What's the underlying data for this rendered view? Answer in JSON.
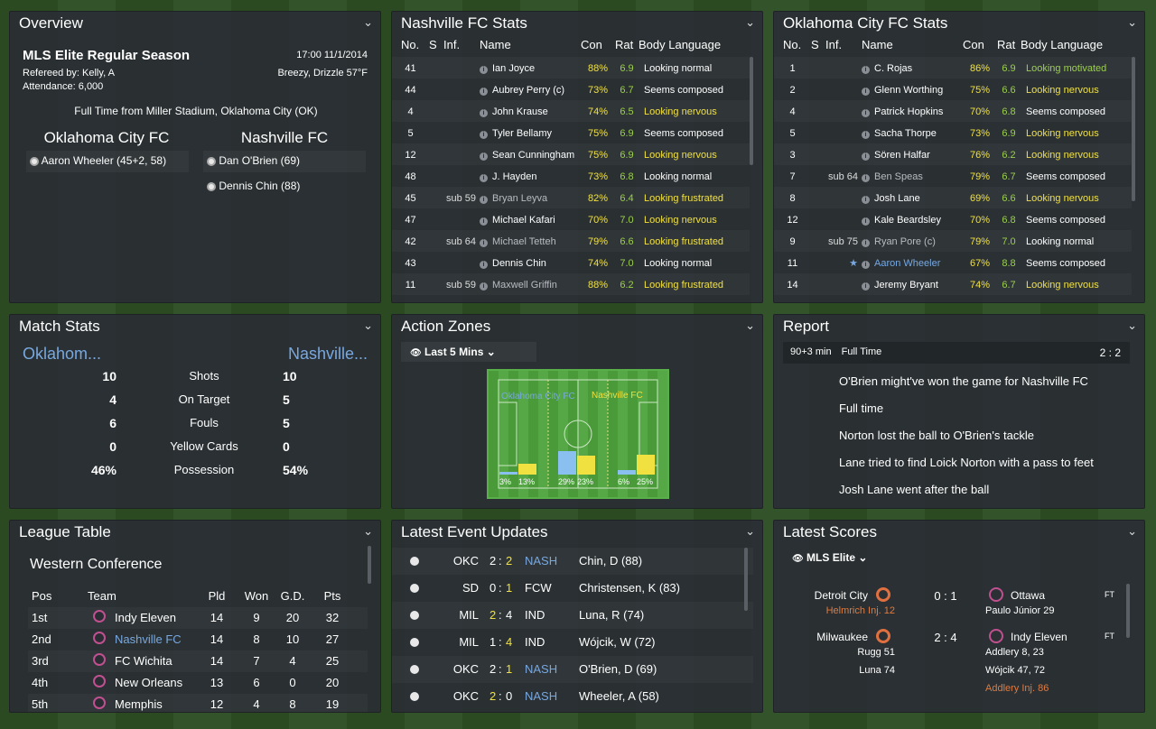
{
  "overview": {
    "title": "Overview",
    "competition": "MLS Elite Regular Season",
    "datetime": "17:00 11/1/2014",
    "referee": "Refereed by: Kelly, A",
    "weather": "Breezy, Drizzle 57°F",
    "attendance": "Attendance: 6,000",
    "result": "Full Time from Miller Stadium, Oklahoma City (OK)",
    "home_team": "Oklahoma City FC",
    "away_team": "Nashville FC",
    "home_scorers": [
      "Aaron Wheeler (45+2, 58)"
    ],
    "away_scorers": [
      "Dan O'Brien (69)",
      "Dennis Chin (88)"
    ]
  },
  "nash_stats": {
    "title": "Nashville FC Stats",
    "headers": [
      "No.",
      "S",
      "Inf.",
      "Name",
      "Con",
      "Rat",
      "Body Language"
    ],
    "rows": [
      {
        "no": "41",
        "sub": "",
        "name": "Ian Joyce",
        "con": "88%",
        "rat": "6.9",
        "bl": "Looking normal",
        "nc": "w",
        "bc": "w"
      },
      {
        "no": "44",
        "sub": "",
        "name": "Aubrey Perry (c)",
        "con": "73%",
        "rat": "6.7",
        "bl": "Seems composed",
        "nc": "w",
        "bc": "w"
      },
      {
        "no": "4",
        "sub": "",
        "name": "John Krause",
        "con": "74%",
        "rat": "6.5",
        "bl": "Looking nervous",
        "nc": "w",
        "bc": "y"
      },
      {
        "no": "5",
        "sub": "",
        "name": "Tyler Bellamy",
        "con": "75%",
        "rat": "6.9",
        "bl": "Seems composed",
        "nc": "w",
        "bc": "w"
      },
      {
        "no": "12",
        "sub": "",
        "name": "Sean Cunningham",
        "con": "75%",
        "rat": "6.9",
        "bl": "Looking nervous",
        "nc": "w",
        "bc": "y"
      },
      {
        "no": "48",
        "sub": "",
        "name": "J. Hayden",
        "con": "73%",
        "rat": "6.8",
        "bl": "Looking normal",
        "nc": "w",
        "bc": "w"
      },
      {
        "no": "45",
        "sub": "sub 59",
        "name": "Bryan Leyva",
        "con": "82%",
        "rat": "6.4",
        "bl": "Looking frustrated",
        "nc": "gr",
        "bc": "y"
      },
      {
        "no": "47",
        "sub": "",
        "name": "Michael Kafari",
        "con": "70%",
        "rat": "7.0",
        "bl": "Looking nervous",
        "nc": "w",
        "bc": "y"
      },
      {
        "no": "42",
        "sub": "sub 64",
        "name": "Michael Tetteh",
        "con": "79%",
        "rat": "6.6",
        "bl": "Looking frustrated",
        "nc": "gr",
        "bc": "y"
      },
      {
        "no": "43",
        "sub": "",
        "name": "Dennis Chin",
        "con": "74%",
        "rat": "7.0",
        "bl": "Looking normal",
        "nc": "w",
        "bc": "w"
      },
      {
        "no": "11",
        "sub": "sub 59",
        "name": "Maxwell Griffin",
        "con": "88%",
        "rat": "6.2",
        "bl": "Looking frustrated",
        "nc": "gr",
        "bc": "y"
      }
    ]
  },
  "okc_stats": {
    "title": "Oklahoma City FC Stats",
    "headers": [
      "No.",
      "S",
      "Inf.",
      "Name",
      "Con",
      "Rat",
      "Body Language"
    ],
    "rows": [
      {
        "no": "1",
        "sub": "",
        "name": "C. Rojas",
        "con": "86%",
        "rat": "6.9",
        "bl": "Looking motivated",
        "nc": "w",
        "bc": "gn"
      },
      {
        "no": "2",
        "sub": "",
        "name": "Glenn Worthing",
        "con": "75%",
        "rat": "6.6",
        "bl": "Looking nervous",
        "nc": "w",
        "bc": "y"
      },
      {
        "no": "4",
        "sub": "",
        "name": "Patrick Hopkins",
        "con": "70%",
        "rat": "6.8",
        "bl": "Seems composed",
        "nc": "w",
        "bc": "w"
      },
      {
        "no": "5",
        "sub": "",
        "name": "Sacha Thorpe",
        "con": "73%",
        "rat": "6.9",
        "bl": "Looking nervous",
        "nc": "w",
        "bc": "y"
      },
      {
        "no": "3",
        "sub": "",
        "name": "Sören Halfar",
        "con": "76%",
        "rat": "6.2",
        "bl": "Looking nervous",
        "nc": "w",
        "bc": "y"
      },
      {
        "no": "7",
        "sub": "sub 64",
        "name": "Ben Speas",
        "con": "79%",
        "rat": "6.7",
        "bl": "Seems composed",
        "nc": "gr",
        "bc": "w"
      },
      {
        "no": "8",
        "sub": "",
        "name": "Josh Lane",
        "con": "69%",
        "rat": "6.6",
        "bl": "Looking nervous",
        "nc": "w",
        "bc": "y"
      },
      {
        "no": "12",
        "sub": "",
        "name": "Kale Beardsley",
        "con": "70%",
        "rat": "6.8",
        "bl": "Seems composed",
        "nc": "w",
        "bc": "w"
      },
      {
        "no": "9",
        "sub": "sub 75",
        "name": "Ryan Pore (c)",
        "con": "79%",
        "rat": "7.0",
        "bl": "Looking normal",
        "nc": "gr",
        "bc": "w"
      },
      {
        "no": "11",
        "sub": "★",
        "name": "Aaron Wheeler",
        "con": "67%",
        "rat": "8.8",
        "bl": "Seems composed",
        "nc": "b",
        "bc": "w"
      },
      {
        "no": "14",
        "sub": "",
        "name": "Jeremy Bryant",
        "con": "74%",
        "rat": "6.7",
        "bl": "Looking nervous",
        "nc": "w",
        "bc": "y"
      }
    ]
  },
  "match_stats": {
    "title": "Match Stats",
    "home": "Oklahom...",
    "away": "Nashville...",
    "rows": [
      {
        "h": "10",
        "label": "Shots",
        "a": "10"
      },
      {
        "h": "4",
        "label": "On Target",
        "a": "5"
      },
      {
        "h": "6",
        "label": "Fouls",
        "a": "5"
      },
      {
        "h": "0",
        "label": "Yellow Cards",
        "a": "0"
      },
      {
        "h": "46%",
        "label": "Possession",
        "a": "54%"
      }
    ]
  },
  "action_zones": {
    "title": "Action Zones",
    "filter": "Last 5 Mins",
    "home_label": "Oklahoma City FC",
    "away_label": "Nashville FC",
    "zones": [
      {
        "home": "3%",
        "away": "13%",
        "home_v": 3,
        "away_v": 13
      },
      {
        "home": "29%",
        "away": "23%",
        "home_v": 29,
        "away_v": 23
      },
      {
        "home": "6%",
        "away": "25%",
        "home_v": 6,
        "away_v": 25
      }
    ]
  },
  "report": {
    "title": "Report",
    "time": "90+3 min",
    "status": "Full Time",
    "score": "2 : 2",
    "lines": [
      "O'Brien might've won the game for Nashville FC",
      "Full time",
      "Norton lost the ball to O'Brien's tackle",
      "Lane tried to find Loick Norton with a pass to feet",
      "Josh Lane went after the ball"
    ]
  },
  "league": {
    "title": "League Table",
    "conference": "Western Conference",
    "headers": [
      "Pos",
      "Team",
      "Pld",
      "Won",
      "G.D.",
      "Pts"
    ],
    "rows": [
      {
        "pos": "1st",
        "team": "Indy Eleven",
        "pld": "14",
        "won": "9",
        "gd": "20",
        "pts": "32",
        "hl": false
      },
      {
        "pos": "2nd",
        "team": "Nashville FC",
        "pld": "14",
        "won": "8",
        "gd": "10",
        "pts": "27",
        "hl": true
      },
      {
        "pos": "3rd",
        "team": "FC Wichita",
        "pld": "14",
        "won": "7",
        "gd": "4",
        "pts": "25",
        "hl": false
      },
      {
        "pos": "4th",
        "team": "New Orleans",
        "pld": "13",
        "won": "6",
        "gd": "0",
        "pts": "20",
        "hl": false
      },
      {
        "pos": "5th",
        "team": "Memphis",
        "pld": "12",
        "won": "4",
        "gd": "8",
        "pts": "19",
        "hl": false
      }
    ]
  },
  "events": {
    "title": "Latest Event Updates",
    "rows": [
      {
        "home": "OKC",
        "hs": "2",
        "as": "2",
        "away": "NASH",
        "player": "Chin, D (88)",
        "hsc": "w",
        "asc": "y",
        "ac": "b"
      },
      {
        "home": "SD",
        "hs": "0",
        "as": "1",
        "away": "FCW",
        "player": "Christensen, K (83)",
        "hsc": "w",
        "asc": "y",
        "ac": "w"
      },
      {
        "home": "MIL",
        "hs": "2",
        "as": "4",
        "away": "IND",
        "player": "Luna, R (74)",
        "hsc": "y",
        "asc": "w",
        "ac": "w"
      },
      {
        "home": "MIL",
        "hs": "1",
        "as": "4",
        "away": "IND",
        "player": "Wójcik, W (72)",
        "hsc": "w",
        "asc": "y",
        "ac": "w"
      },
      {
        "home": "OKC",
        "hs": "2",
        "as": "1",
        "away": "NASH",
        "player": "O'Brien, D (69)",
        "hsc": "w",
        "asc": "y",
        "ac": "b"
      },
      {
        "home": "OKC",
        "hs": "2",
        "as": "0",
        "away": "NASH",
        "player": "Wheeler, A (58)",
        "hsc": "y",
        "asc": "w",
        "ac": "b"
      }
    ]
  },
  "scores": {
    "title": "Latest Scores",
    "filter": "MLS Elite",
    "matches": [
      {
        "home": "Detroit City",
        "score": "0 : 1",
        "away": "Ottawa",
        "status": "FT",
        "home_notes": [
          "Helmrich Inj. 12"
        ],
        "away_notes": [
          "Paulo Júnior 29"
        ]
      },
      {
        "home": "Milwaukee",
        "score": "2 : 4",
        "away": "Indy Eleven",
        "status": "FT",
        "home_notes": [
          "Rugg 51",
          "Luna 74"
        ],
        "away_notes": [
          "Addlery 8, 23",
          "Wójcik 47, 72",
          "Addlery Inj. 86"
        ]
      }
    ]
  }
}
